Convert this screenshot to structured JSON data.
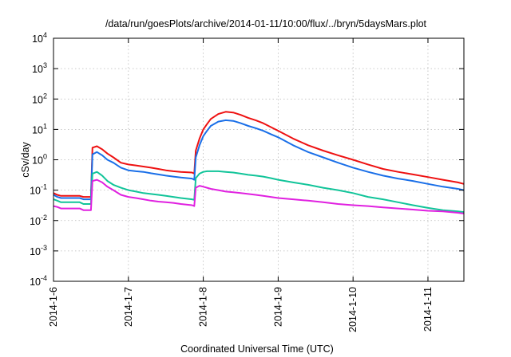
{
  "chart_data": {
    "type": "line",
    "title": "/data/run/goesPlots/archive/2014-01-11/10:00/flux/../bryn/5daysMars.plot",
    "xlabel": "Coordinated Universal Time (UTC)",
    "ylabel": "cSv/day",
    "yscale": "log",
    "ylim": [
      0.0001,
      10000
    ],
    "xlim": [
      0,
      5.48
    ],
    "grid": true,
    "x_ticks": [
      {
        "value": 0,
        "label": "2014-1-6"
      },
      {
        "value": 1,
        "label": "2014-1-7"
      },
      {
        "value": 2,
        "label": "2014-1-8"
      },
      {
        "value": 3,
        "label": "2014-1-9"
      },
      {
        "value": 4,
        "label": "2014-1-10"
      },
      {
        "value": 5,
        "label": "2014-1-11"
      }
    ],
    "y_ticks": [
      {
        "value": 0.0001,
        "base": "10",
        "exp": "-4"
      },
      {
        "value": 0.001,
        "base": "10",
        "exp": "-3"
      },
      {
        "value": 0.01,
        "base": "10",
        "exp": "-2"
      },
      {
        "value": 0.1,
        "base": "10",
        "exp": "-1"
      },
      {
        "value": 1,
        "base": "10",
        "exp": "0"
      },
      {
        "value": 10,
        "base": "10",
        "exp": "1"
      },
      {
        "value": 100,
        "base": "10",
        "exp": "2"
      },
      {
        "value": 1000,
        "base": "10",
        "exp": "3"
      },
      {
        "value": 10000,
        "base": "10",
        "exp": "4"
      }
    ],
    "series": [
      {
        "name": "red",
        "color": "#ee1111",
        "x": [
          0,
          0.05,
          0.1,
          0.15,
          0.2,
          0.25,
          0.3,
          0.35,
          0.4,
          0.45,
          0.5,
          0.52,
          0.58,
          0.65,
          0.72,
          0.8,
          0.9,
          1.0,
          1.1,
          1.2,
          1.3,
          1.4,
          1.5,
          1.6,
          1.7,
          1.85,
          1.88,
          1.9,
          1.95,
          2.0,
          2.05,
          2.1,
          2.2,
          2.3,
          2.4,
          2.5,
          2.6,
          2.7,
          2.8,
          2.9,
          3.0,
          3.2,
          3.4,
          3.6,
          3.8,
          4.0,
          4.2,
          4.4,
          4.6,
          4.8,
          5.0,
          5.2,
          5.4,
          5.48
        ],
        "y": [
          0.08,
          0.07,
          0.065,
          0.065,
          0.065,
          0.065,
          0.065,
          0.065,
          0.06,
          0.06,
          0.06,
          2.5,
          2.8,
          2.2,
          1.6,
          1.2,
          0.8,
          0.7,
          0.65,
          0.6,
          0.55,
          0.5,
          0.45,
          0.42,
          0.4,
          0.38,
          0.35,
          2.0,
          5.0,
          10,
          15,
          22,
          32,
          38,
          36,
          30,
          24,
          20,
          16,
          12,
          9,
          5,
          3,
          2,
          1.4,
          1.0,
          0.7,
          0.5,
          0.4,
          0.33,
          0.27,
          0.22,
          0.18,
          0.16
        ]
      },
      {
        "name": "blue",
        "color": "#1a6fe8",
        "x": [
          0,
          0.05,
          0.1,
          0.15,
          0.2,
          0.25,
          0.3,
          0.35,
          0.4,
          0.45,
          0.5,
          0.52,
          0.58,
          0.65,
          0.72,
          0.8,
          0.9,
          1.0,
          1.1,
          1.2,
          1.3,
          1.4,
          1.5,
          1.6,
          1.7,
          1.85,
          1.88,
          1.9,
          1.95,
          2.0,
          2.05,
          2.1,
          2.2,
          2.3,
          2.4,
          2.5,
          2.6,
          2.7,
          2.8,
          2.9,
          3.0,
          3.2,
          3.4,
          3.6,
          3.8,
          4.0,
          4.2,
          4.4,
          4.6,
          4.8,
          5.0,
          5.2,
          5.4,
          5.48
        ],
        "y": [
          0.07,
          0.06,
          0.055,
          0.055,
          0.055,
          0.055,
          0.055,
          0.055,
          0.05,
          0.05,
          0.05,
          1.5,
          1.8,
          1.4,
          1.0,
          0.8,
          0.55,
          0.45,
          0.42,
          0.4,
          0.36,
          0.33,
          0.3,
          0.28,
          0.26,
          0.24,
          0.22,
          1.2,
          3.0,
          6.0,
          9.0,
          13,
          18,
          20,
          19,
          16,
          13,
          11,
          9,
          7,
          5.5,
          3,
          1.8,
          1.2,
          0.8,
          0.55,
          0.4,
          0.3,
          0.24,
          0.2,
          0.16,
          0.13,
          0.11,
          0.1
        ]
      },
      {
        "name": "teal",
        "color": "#11c499",
        "x": [
          0,
          0.05,
          0.1,
          0.15,
          0.2,
          0.25,
          0.3,
          0.35,
          0.4,
          0.45,
          0.5,
          0.52,
          0.58,
          0.65,
          0.72,
          0.8,
          0.9,
          1.0,
          1.1,
          1.2,
          1.3,
          1.4,
          1.5,
          1.6,
          1.7,
          1.85,
          1.88,
          1.9,
          1.95,
          2.0,
          2.05,
          2.1,
          2.2,
          2.3,
          2.4,
          2.5,
          2.6,
          2.7,
          2.8,
          2.9,
          3.0,
          3.2,
          3.4,
          3.6,
          3.8,
          4.0,
          4.2,
          4.4,
          4.6,
          4.8,
          5.0,
          5.2,
          5.4,
          5.48
        ],
        "y": [
          0.05,
          0.045,
          0.04,
          0.04,
          0.04,
          0.04,
          0.04,
          0.04,
          0.035,
          0.035,
          0.035,
          0.35,
          0.4,
          0.3,
          0.2,
          0.15,
          0.12,
          0.1,
          0.09,
          0.08,
          0.075,
          0.07,
          0.065,
          0.06,
          0.055,
          0.05,
          0.048,
          0.25,
          0.35,
          0.4,
          0.42,
          0.42,
          0.42,
          0.4,
          0.38,
          0.35,
          0.32,
          0.3,
          0.28,
          0.25,
          0.22,
          0.18,
          0.15,
          0.12,
          0.1,
          0.08,
          0.06,
          0.05,
          0.04,
          0.032,
          0.026,
          0.022,
          0.02,
          0.019
        ]
      },
      {
        "name": "magenta",
        "color": "#e020e0",
        "x": [
          0,
          0.05,
          0.1,
          0.15,
          0.2,
          0.25,
          0.3,
          0.35,
          0.4,
          0.45,
          0.5,
          0.52,
          0.58,
          0.65,
          0.72,
          0.8,
          0.9,
          1.0,
          1.1,
          1.2,
          1.3,
          1.4,
          1.5,
          1.6,
          1.7,
          1.85,
          1.88,
          1.9,
          1.95,
          2.0,
          2.05,
          2.1,
          2.2,
          2.3,
          2.4,
          2.5,
          2.6,
          2.7,
          2.8,
          2.9,
          3.0,
          3.2,
          3.4,
          3.6,
          3.8,
          4.0,
          4.2,
          4.4,
          4.6,
          4.8,
          5.0,
          5.2,
          5.4,
          5.48
        ],
        "y": [
          0.03,
          0.028,
          0.025,
          0.025,
          0.025,
          0.025,
          0.025,
          0.025,
          0.022,
          0.022,
          0.022,
          0.2,
          0.22,
          0.18,
          0.13,
          0.1,
          0.07,
          0.06,
          0.055,
          0.05,
          0.045,
          0.042,
          0.04,
          0.038,
          0.035,
          0.032,
          0.03,
          0.12,
          0.14,
          0.13,
          0.12,
          0.11,
          0.1,
          0.09,
          0.085,
          0.08,
          0.075,
          0.07,
          0.065,
          0.06,
          0.055,
          0.05,
          0.045,
          0.04,
          0.035,
          0.032,
          0.03,
          0.027,
          0.025,
          0.023,
          0.021,
          0.02,
          0.018,
          0.017
        ]
      }
    ]
  }
}
